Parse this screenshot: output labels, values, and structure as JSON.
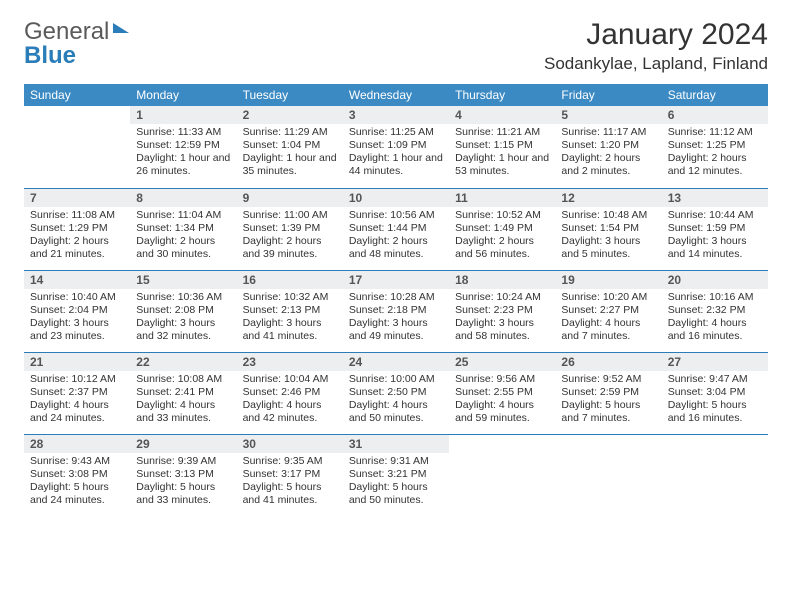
{
  "logo": {
    "part1": "General",
    "part2": "Blue"
  },
  "title": "January 2024",
  "location": "Sodankylae, Lapland, Finland",
  "colors": {
    "header_bg": "#3b8ac4",
    "header_text": "#ffffff",
    "daynum_bg": "#eceef0",
    "border": "#2a7db8"
  },
  "weekdays": [
    "Sunday",
    "Monday",
    "Tuesday",
    "Wednesday",
    "Thursday",
    "Friday",
    "Saturday"
  ],
  "weeks": [
    [
      {
        "n": "",
        "sr": "",
        "ss": "",
        "dl": "",
        "empty": true
      },
      {
        "n": "1",
        "sr": "Sunrise: 11:33 AM",
        "ss": "Sunset: 12:59 PM",
        "dl": "Daylight: 1 hour and 26 minutes."
      },
      {
        "n": "2",
        "sr": "Sunrise: 11:29 AM",
        "ss": "Sunset: 1:04 PM",
        "dl": "Daylight: 1 hour and 35 minutes."
      },
      {
        "n": "3",
        "sr": "Sunrise: 11:25 AM",
        "ss": "Sunset: 1:09 PM",
        "dl": "Daylight: 1 hour and 44 minutes."
      },
      {
        "n": "4",
        "sr": "Sunrise: 11:21 AM",
        "ss": "Sunset: 1:15 PM",
        "dl": "Daylight: 1 hour and 53 minutes."
      },
      {
        "n": "5",
        "sr": "Sunrise: 11:17 AM",
        "ss": "Sunset: 1:20 PM",
        "dl": "Daylight: 2 hours and 2 minutes."
      },
      {
        "n": "6",
        "sr": "Sunrise: 11:12 AM",
        "ss": "Sunset: 1:25 PM",
        "dl": "Daylight: 2 hours and 12 minutes."
      }
    ],
    [
      {
        "n": "7",
        "sr": "Sunrise: 11:08 AM",
        "ss": "Sunset: 1:29 PM",
        "dl": "Daylight: 2 hours and 21 minutes."
      },
      {
        "n": "8",
        "sr": "Sunrise: 11:04 AM",
        "ss": "Sunset: 1:34 PM",
        "dl": "Daylight: 2 hours and 30 minutes."
      },
      {
        "n": "9",
        "sr": "Sunrise: 11:00 AM",
        "ss": "Sunset: 1:39 PM",
        "dl": "Daylight: 2 hours and 39 minutes."
      },
      {
        "n": "10",
        "sr": "Sunrise: 10:56 AM",
        "ss": "Sunset: 1:44 PM",
        "dl": "Daylight: 2 hours and 48 minutes."
      },
      {
        "n": "11",
        "sr": "Sunrise: 10:52 AM",
        "ss": "Sunset: 1:49 PM",
        "dl": "Daylight: 2 hours and 56 minutes."
      },
      {
        "n": "12",
        "sr": "Sunrise: 10:48 AM",
        "ss": "Sunset: 1:54 PM",
        "dl": "Daylight: 3 hours and 5 minutes."
      },
      {
        "n": "13",
        "sr": "Sunrise: 10:44 AM",
        "ss": "Sunset: 1:59 PM",
        "dl": "Daylight: 3 hours and 14 minutes."
      }
    ],
    [
      {
        "n": "14",
        "sr": "Sunrise: 10:40 AM",
        "ss": "Sunset: 2:04 PM",
        "dl": "Daylight: 3 hours and 23 minutes."
      },
      {
        "n": "15",
        "sr": "Sunrise: 10:36 AM",
        "ss": "Sunset: 2:08 PM",
        "dl": "Daylight: 3 hours and 32 minutes."
      },
      {
        "n": "16",
        "sr": "Sunrise: 10:32 AM",
        "ss": "Sunset: 2:13 PM",
        "dl": "Daylight: 3 hours and 41 minutes."
      },
      {
        "n": "17",
        "sr": "Sunrise: 10:28 AM",
        "ss": "Sunset: 2:18 PM",
        "dl": "Daylight: 3 hours and 49 minutes."
      },
      {
        "n": "18",
        "sr": "Sunrise: 10:24 AM",
        "ss": "Sunset: 2:23 PM",
        "dl": "Daylight: 3 hours and 58 minutes."
      },
      {
        "n": "19",
        "sr": "Sunrise: 10:20 AM",
        "ss": "Sunset: 2:27 PM",
        "dl": "Daylight: 4 hours and 7 minutes."
      },
      {
        "n": "20",
        "sr": "Sunrise: 10:16 AM",
        "ss": "Sunset: 2:32 PM",
        "dl": "Daylight: 4 hours and 16 minutes."
      }
    ],
    [
      {
        "n": "21",
        "sr": "Sunrise: 10:12 AM",
        "ss": "Sunset: 2:37 PM",
        "dl": "Daylight: 4 hours and 24 minutes."
      },
      {
        "n": "22",
        "sr": "Sunrise: 10:08 AM",
        "ss": "Sunset: 2:41 PM",
        "dl": "Daylight: 4 hours and 33 minutes."
      },
      {
        "n": "23",
        "sr": "Sunrise: 10:04 AM",
        "ss": "Sunset: 2:46 PM",
        "dl": "Daylight: 4 hours and 42 minutes."
      },
      {
        "n": "24",
        "sr": "Sunrise: 10:00 AM",
        "ss": "Sunset: 2:50 PM",
        "dl": "Daylight: 4 hours and 50 minutes."
      },
      {
        "n": "25",
        "sr": "Sunrise: 9:56 AM",
        "ss": "Sunset: 2:55 PM",
        "dl": "Daylight: 4 hours and 59 minutes."
      },
      {
        "n": "26",
        "sr": "Sunrise: 9:52 AM",
        "ss": "Sunset: 2:59 PM",
        "dl": "Daylight: 5 hours and 7 minutes."
      },
      {
        "n": "27",
        "sr": "Sunrise: 9:47 AM",
        "ss": "Sunset: 3:04 PM",
        "dl": "Daylight: 5 hours and 16 minutes."
      }
    ],
    [
      {
        "n": "28",
        "sr": "Sunrise: 9:43 AM",
        "ss": "Sunset: 3:08 PM",
        "dl": "Daylight: 5 hours and 24 minutes."
      },
      {
        "n": "29",
        "sr": "Sunrise: 9:39 AM",
        "ss": "Sunset: 3:13 PM",
        "dl": "Daylight: 5 hours and 33 minutes."
      },
      {
        "n": "30",
        "sr": "Sunrise: 9:35 AM",
        "ss": "Sunset: 3:17 PM",
        "dl": "Daylight: 5 hours and 41 minutes."
      },
      {
        "n": "31",
        "sr": "Sunrise: 9:31 AM",
        "ss": "Sunset: 3:21 PM",
        "dl": "Daylight: 5 hours and 50 minutes."
      },
      {
        "n": "",
        "sr": "",
        "ss": "",
        "dl": "",
        "empty": true
      },
      {
        "n": "",
        "sr": "",
        "ss": "",
        "dl": "",
        "empty": true
      },
      {
        "n": "",
        "sr": "",
        "ss": "",
        "dl": "",
        "empty": true
      }
    ]
  ]
}
